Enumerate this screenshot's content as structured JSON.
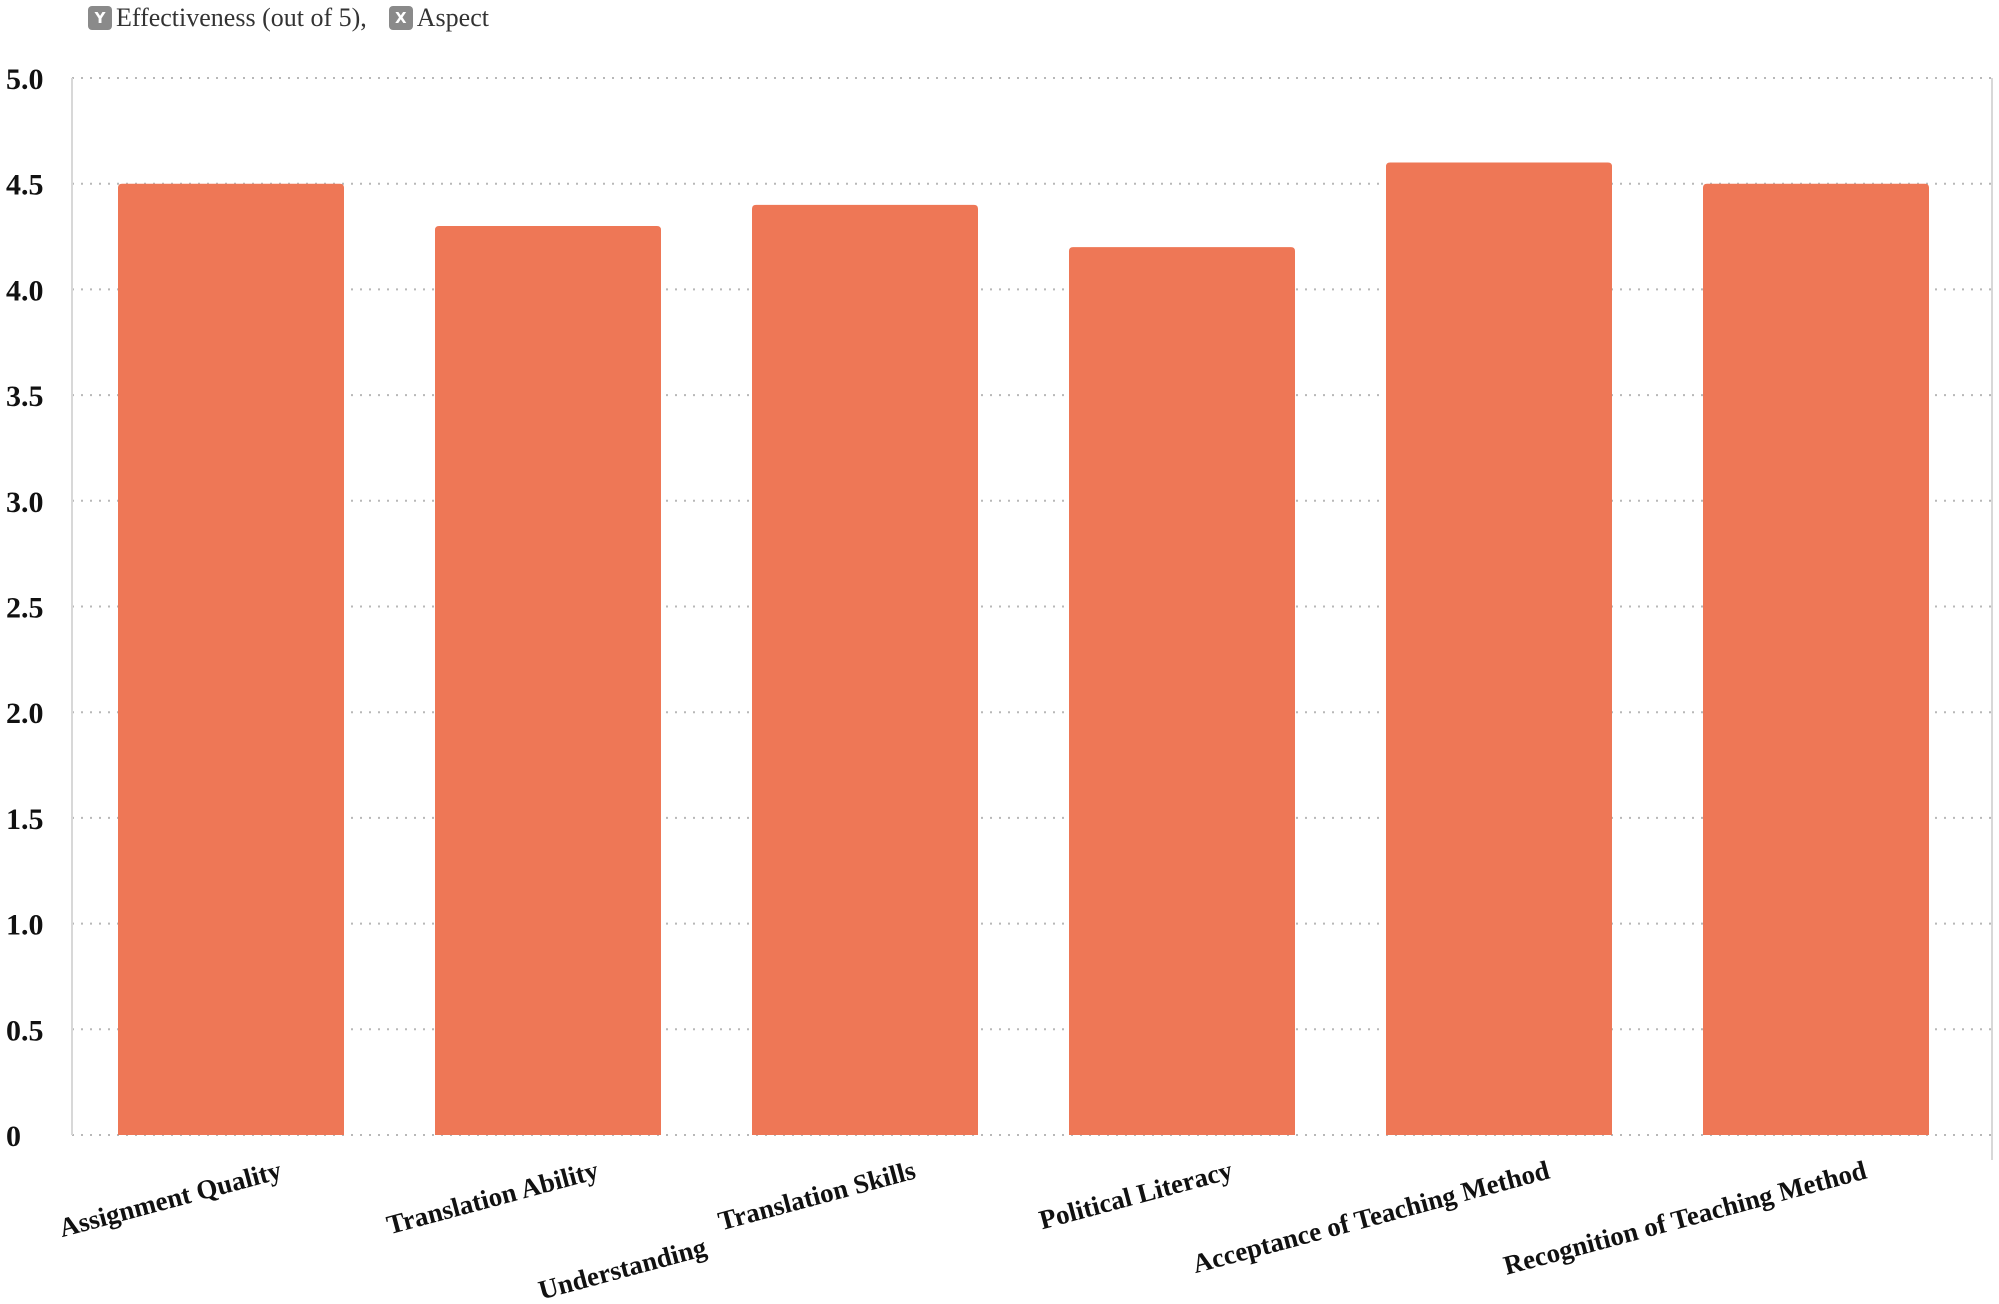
{
  "legend": {
    "y_key": "Y",
    "y_label": "Effectiveness (out of 5),",
    "x_key": "X",
    "x_label": "Aspect"
  },
  "chart_data": {
    "type": "bar",
    "categories": [
      "Assignment Quality",
      "Translation Ability",
      "Understanding  Translation Skills",
      "Political Literacy",
      "Acceptance of Teaching  Method",
      "Recognition of Teaching Method"
    ],
    "category_label_lines": [
      [
        "Assignment Quality"
      ],
      [
        "Translation Ability"
      ],
      [
        "Understanding",
        "Translation Skills"
      ],
      [
        "Political Literacy"
      ],
      [
        "Acceptance of Teaching  Method"
      ],
      [
        "Recognition of Teaching Method"
      ]
    ],
    "series": [
      {
        "values": [
          4.5,
          4.3,
          4.4,
          4.2,
          4.6,
          4.5
        ]
      }
    ],
    "yticks": [
      "0",
      "0.5",
      "1.0",
      "1.5",
      "2.0",
      "2.5",
      "3.0",
      "3.5",
      "4.0",
      "4.5",
      "5.0"
    ],
    "ylim": [
      0,
      5
    ],
    "grid": true,
    "legend_position": "top-left",
    "colors": {
      "bar": "#EE7756",
      "grid": "#b8b8b8",
      "axis": "#d8d8d8",
      "legend_key": "#8a8a8a"
    }
  }
}
